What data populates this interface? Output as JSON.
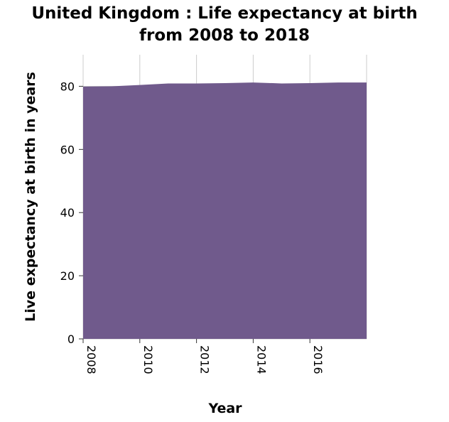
{
  "chart_data": {
    "type": "area",
    "title_line1": "United Kingdom : Life expectancy at birth",
    "title_line2": "from 2008 to 2018",
    "xlabel": "Year",
    "ylabel": "Live expectancy at birth in years",
    "x": [
      2008,
      2009,
      2010,
      2011,
      2012,
      2013,
      2014,
      2015,
      2016,
      2017,
      2018
    ],
    "values": [
      79.9,
      80.0,
      80.4,
      80.9,
      80.9,
      81.0,
      81.2,
      80.9,
      81.0,
      81.2,
      81.2
    ],
    "xlim": [
      2008,
      2018
    ],
    "ylim": [
      0,
      90
    ],
    "xticks": [
      2008,
      2010,
      2012,
      2014,
      2016
    ],
    "yticks": [
      0,
      20,
      40,
      60,
      80
    ],
    "fill_color": "#705a8c",
    "grid": true
  }
}
